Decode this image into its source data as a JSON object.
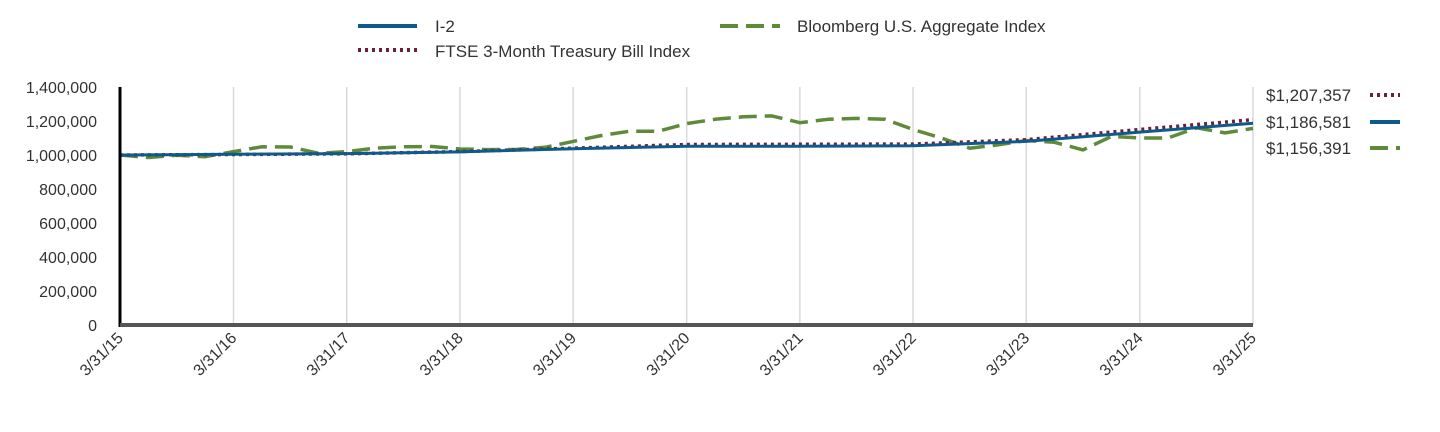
{
  "chart_data": {
    "type": "line",
    "title": "",
    "xlabel": "",
    "ylabel": "",
    "ylim": [
      0,
      1400000
    ],
    "y_ticks": [
      0,
      200000,
      400000,
      600000,
      800000,
      1000000,
      1200000,
      1400000
    ],
    "y_tick_labels": [
      "0",
      "200,000",
      "400,000",
      "600,000",
      "800,000",
      "1,000,000",
      "1,200,000",
      "1,400,000"
    ],
    "x_ticks": [
      "2015-03-31",
      "2016-03-31",
      "2017-03-31",
      "2018-03-31",
      "2019-03-31",
      "2020-03-31",
      "2021-03-31",
      "2022-03-31",
      "2023-03-31",
      "2024-03-31",
      "2025-03-31"
    ],
    "x_tick_labels": [
      "3/31/15",
      "3/31/16",
      "3/31/17",
      "3/31/18",
      "3/31/19",
      "3/31/20",
      "3/31/21",
      "3/31/22",
      "3/31/23",
      "3/31/24",
      "3/31/25"
    ],
    "grid": "vertical",
    "legend_position": "top",
    "series": [
      {
        "name": "I-2",
        "color": "#0f5a8c",
        "style": "solid",
        "end_label": "$1,186,581",
        "points": [
          [
            "2015-03-31",
            1000000
          ],
          [
            "2016-03-31",
            1004000
          ],
          [
            "2017-03-31",
            1008000
          ],
          [
            "2018-03-31",
            1018000
          ],
          [
            "2019-03-31",
            1037000
          ],
          [
            "2020-03-31",
            1052000
          ],
          [
            "2021-03-31",
            1052000
          ],
          [
            "2022-03-31",
            1054000
          ],
          [
            "2023-03-31",
            1080000
          ],
          [
            "2024-03-31",
            1135000
          ],
          [
            "2025-03-31",
            1186581
          ]
        ]
      },
      {
        "name": "FTSE 3-Month Treasury Bill Index",
        "color": "#6b1f3d",
        "style": "dotted",
        "end_label": "$1,207,357",
        "points": [
          [
            "2015-03-31",
            1000000
          ],
          [
            "2016-03-31",
            1003000
          ],
          [
            "2017-03-31",
            1007000
          ],
          [
            "2018-03-31",
            1020000
          ],
          [
            "2019-03-31",
            1040000
          ],
          [
            "2020-03-31",
            1062000
          ],
          [
            "2021-03-31",
            1063000
          ],
          [
            "2022-03-31",
            1064000
          ],
          [
            "2023-03-31",
            1090000
          ],
          [
            "2024-03-31",
            1150000
          ],
          [
            "2025-03-31",
            1207357
          ]
        ]
      },
      {
        "name": "Bloomberg U.S. Aggregate Index",
        "color": "#5e8a3a",
        "style": "dashed",
        "end_label": "$1,156,391",
        "points": [
          [
            "2015-03-31",
            1000000
          ],
          [
            "2015-06-30",
            985000
          ],
          [
            "2015-09-30",
            998000
          ],
          [
            "2015-12-31",
            990000
          ],
          [
            "2016-03-31",
            1020000
          ],
          [
            "2016-06-30",
            1048000
          ],
          [
            "2016-09-30",
            1047000
          ],
          [
            "2016-12-31",
            1010000
          ],
          [
            "2017-03-31",
            1020000
          ],
          [
            "2017-06-30",
            1040000
          ],
          [
            "2017-09-30",
            1048000
          ],
          [
            "2017-12-31",
            1050000
          ],
          [
            "2018-03-31",
            1035000
          ],
          [
            "2018-06-30",
            1032000
          ],
          [
            "2018-09-30",
            1033000
          ],
          [
            "2018-12-31",
            1045000
          ],
          [
            "2019-03-31",
            1080000
          ],
          [
            "2019-06-30",
            1115000
          ],
          [
            "2019-09-30",
            1140000
          ],
          [
            "2019-12-31",
            1140000
          ],
          [
            "2020-03-31",
            1185000
          ],
          [
            "2020-06-30",
            1210000
          ],
          [
            "2020-09-30",
            1225000
          ],
          [
            "2020-12-31",
            1230000
          ],
          [
            "2021-03-31",
            1190000
          ],
          [
            "2021-06-30",
            1210000
          ],
          [
            "2021-09-30",
            1215000
          ],
          [
            "2021-12-31",
            1210000
          ],
          [
            "2022-03-31",
            1150000
          ],
          [
            "2022-06-30",
            1100000
          ],
          [
            "2022-09-30",
            1040000
          ],
          [
            "2022-12-31",
            1060000
          ],
          [
            "2023-03-31",
            1085000
          ],
          [
            "2023-06-30",
            1075000
          ],
          [
            "2023-09-30",
            1030000
          ],
          [
            "2023-12-31",
            1110000
          ],
          [
            "2024-03-31",
            1100000
          ],
          [
            "2024-06-30",
            1100000
          ],
          [
            "2024-09-30",
            1160000
          ],
          [
            "2024-12-31",
            1130000
          ],
          [
            "2025-03-31",
            1156391
          ]
        ]
      }
    ]
  }
}
